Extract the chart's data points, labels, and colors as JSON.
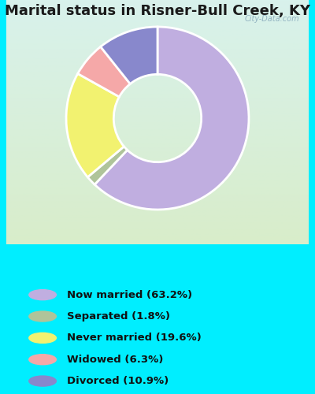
{
  "title": "Marital status in Risner-Bull Creek, KY",
  "slices": [
    63.2,
    1.8,
    19.6,
    6.3,
    10.9
  ],
  "labels": [
    "Now married (63.2%)",
    "Separated (1.8%)",
    "Never married (19.6%)",
    "Widowed (6.3%)",
    "Divorced (10.9%)"
  ],
  "colors": [
    "#c0aee0",
    "#afc49a",
    "#f2f270",
    "#f5a8a8",
    "#8888cc"
  ],
  "bg_color": "#00eeff",
  "chart_bg_top": "#d8f2ec",
  "chart_bg_bottom": "#d8edca",
  "title_fontsize": 13,
  "donut_width": 0.52,
  "start_angle": 90,
  "watermark": "City-Data.com"
}
